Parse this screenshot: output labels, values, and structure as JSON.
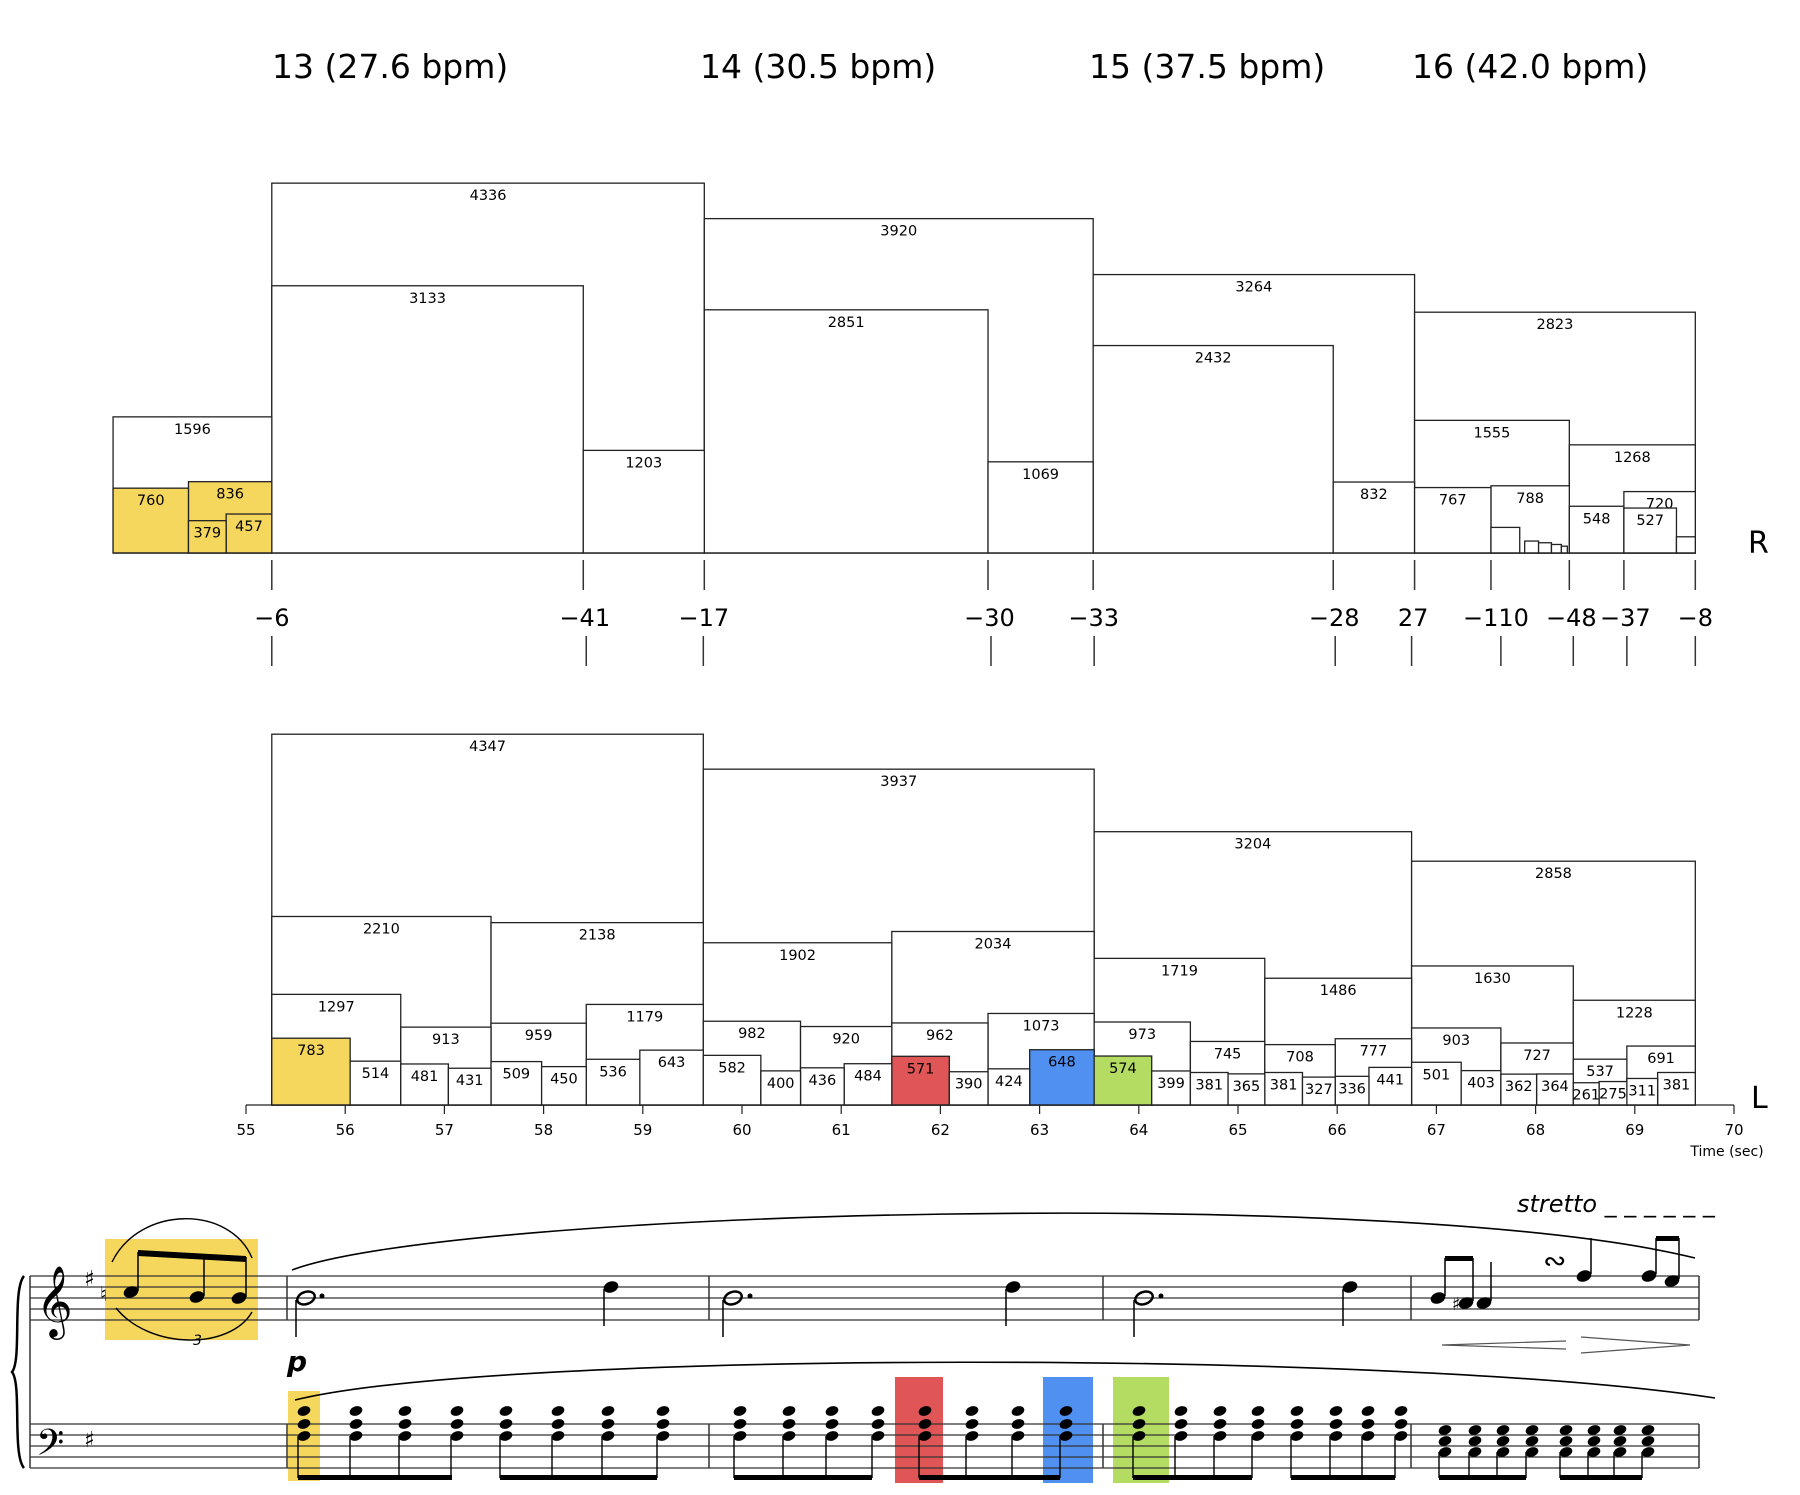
{
  "chart_data": {
    "type": "hierarchical-timing",
    "measures": [
      {
        "label": "13 (27.6 bpm)",
        "start": 55.26,
        "end": 59.62
      },
      {
        "label": "14 (30.5 bpm)",
        "start": 59.62,
        "end": 63.54
      },
      {
        "label": "15 (37.5 bpm)",
        "start": 63.54,
        "end": 66.78
      },
      {
        "label": "16 (42.0 bpm)",
        "start": 66.78,
        "end": 69.61
      }
    ],
    "xaxis": {
      "label": "Time (sec)",
      "min": 55,
      "max": 70,
      "ticks": [
        55,
        56,
        57,
        58,
        59,
        60,
        61,
        62,
        63,
        64,
        65,
        66,
        67,
        68,
        69,
        70
      ]
    },
    "hand_labels": {
      "right": "R",
      "left": "L"
    },
    "right_hand_boxes": [
      {
        "start": 53.66,
        "end": 55.26,
        "value": 1596,
        "show": true
      },
      {
        "start": 53.66,
        "end": 54.42,
        "value": 760,
        "show": true,
        "color": "yellow"
      },
      {
        "start": 54.42,
        "end": 55.26,
        "value": 836,
        "show": true,
        "color": "yellow"
      },
      {
        "start": 54.42,
        "end": 54.8,
        "value": 379,
        "show": true,
        "color": "yellow"
      },
      {
        "start": 54.8,
        "end": 55.26,
        "value": 457,
        "show": true,
        "color": "yellow"
      },
      {
        "start": 55.26,
        "end": 59.62,
        "value": 4336,
        "show": true
      },
      {
        "start": 55.26,
        "end": 58.4,
        "value": 3133,
        "show": true
      },
      {
        "start": 58.4,
        "end": 59.62,
        "value": 1203,
        "show": true
      },
      {
        "start": 59.62,
        "end": 63.54,
        "value": 3920,
        "show": true
      },
      {
        "start": 59.62,
        "end": 62.48,
        "value": 2851,
        "show": true
      },
      {
        "start": 62.48,
        "end": 63.54,
        "value": 1069,
        "show": true
      },
      {
        "start": 63.54,
        "end": 66.78,
        "value": 3264,
        "show": true
      },
      {
        "start": 63.54,
        "end": 65.96,
        "value": 2432,
        "show": true
      },
      {
        "start": 65.96,
        "end": 66.78,
        "value": 832,
        "show": true
      },
      {
        "start": 66.78,
        "end": 69.61,
        "value": 2823,
        "show": true
      },
      {
        "start": 66.78,
        "end": 68.34,
        "value": 1555,
        "show": true
      },
      {
        "start": 66.78,
        "end": 67.55,
        "value": 767,
        "show": true
      },
      {
        "start": 67.55,
        "end": 68.34,
        "value": 788,
        "show": true
      },
      {
        "start": 67.55,
        "end": 67.84,
        "value": 300,
        "show": false
      },
      {
        "start": 67.89,
        "end": 68.03,
        "value": 140,
        "show": false
      },
      {
        "start": 68.03,
        "end": 68.16,
        "value": 120,
        "show": false
      },
      {
        "start": 68.16,
        "end": 68.26,
        "value": 100,
        "show": false
      },
      {
        "start": 68.26,
        "end": 68.32,
        "value": 80,
        "show": false
      },
      {
        "start": 68.34,
        "end": 69.61,
        "value": 1268,
        "show": true
      },
      {
        "start": 68.34,
        "end": 68.89,
        "value": 548,
        "show": true
      },
      {
        "start": 68.89,
        "end": 69.61,
        "value": 720,
        "show": true
      },
      {
        "start": 68.89,
        "end": 69.42,
        "value": 527,
        "show": true
      },
      {
        "start": 69.42,
        "end": 69.61,
        "value": 190,
        "show": false
      }
    ],
    "left_hand_boxes": [
      {
        "start": 55.26,
        "end": 59.61,
        "value": 4347,
        "show": true
      },
      {
        "start": 55.26,
        "end": 57.47,
        "value": 2210,
        "show": true
      },
      {
        "start": 57.47,
        "end": 59.61,
        "value": 2138,
        "show": true
      },
      {
        "start": 55.26,
        "end": 56.56,
        "value": 1297,
        "show": true
      },
      {
        "start": 56.56,
        "end": 57.47,
        "value": 913,
        "show": true
      },
      {
        "start": 57.47,
        "end": 58.43,
        "value": 959,
        "show": true
      },
      {
        "start": 58.43,
        "end": 59.61,
        "value": 1179,
        "show": true
      },
      {
        "start": 55.26,
        "end": 56.05,
        "value": 783,
        "show": true,
        "color": "yellow"
      },
      {
        "start": 56.05,
        "end": 56.56,
        "value": 514,
        "show": true
      },
      {
        "start": 56.56,
        "end": 57.04,
        "value": 481,
        "show": true
      },
      {
        "start": 57.04,
        "end": 57.47,
        "value": 431,
        "show": true
      },
      {
        "start": 57.47,
        "end": 57.98,
        "value": 509,
        "show": true
      },
      {
        "start": 57.98,
        "end": 58.43,
        "value": 450,
        "show": true
      },
      {
        "start": 58.43,
        "end": 58.97,
        "value": 536,
        "show": true
      },
      {
        "start": 58.97,
        "end": 59.61,
        "value": 643,
        "show": true
      },
      {
        "start": 59.61,
        "end": 63.55,
        "value": 3937,
        "show": true
      },
      {
        "start": 59.61,
        "end": 61.51,
        "value": 1902,
        "show": true
      },
      {
        "start": 61.51,
        "end": 63.55,
        "value": 2034,
        "show": true
      },
      {
        "start": 59.61,
        "end": 60.59,
        "value": 982,
        "show": true
      },
      {
        "start": 60.59,
        "end": 61.51,
        "value": 920,
        "show": true
      },
      {
        "start": 61.51,
        "end": 62.48,
        "value": 962,
        "show": true
      },
      {
        "start": 62.48,
        "end": 63.55,
        "value": 1073,
        "show": true
      },
      {
        "start": 59.61,
        "end": 60.19,
        "value": 582,
        "show": true
      },
      {
        "start": 60.19,
        "end": 60.59,
        "value": 400,
        "show": true
      },
      {
        "start": 60.59,
        "end": 61.03,
        "value": 436,
        "show": true
      },
      {
        "start": 61.03,
        "end": 61.51,
        "value": 484,
        "show": true
      },
      {
        "start": 61.51,
        "end": 62.09,
        "value": 571,
        "show": true,
        "color": "red"
      },
      {
        "start": 62.09,
        "end": 62.48,
        "value": 390,
        "show": true
      },
      {
        "start": 62.48,
        "end": 62.9,
        "value": 424,
        "show": true
      },
      {
        "start": 62.9,
        "end": 63.55,
        "value": 648,
        "show": true,
        "color": "blue"
      },
      {
        "start": 63.55,
        "end": 66.75,
        "value": 3204,
        "show": true
      },
      {
        "start": 63.55,
        "end": 65.27,
        "value": 1719,
        "show": true
      },
      {
        "start": 65.27,
        "end": 66.75,
        "value": 1486,
        "show": true
      },
      {
        "start": 63.55,
        "end": 64.52,
        "value": 973,
        "show": true
      },
      {
        "start": 64.52,
        "end": 65.27,
        "value": 745,
        "show": true
      },
      {
        "start": 65.27,
        "end": 65.98,
        "value": 708,
        "show": true
      },
      {
        "start": 65.98,
        "end": 66.75,
        "value": 777,
        "show": true
      },
      {
        "start": 63.55,
        "end": 64.13,
        "value": 574,
        "show": true,
        "color": "green"
      },
      {
        "start": 64.13,
        "end": 64.52,
        "value": 399,
        "show": true
      },
      {
        "start": 64.52,
        "end": 64.9,
        "value": 381,
        "show": true
      },
      {
        "start": 64.9,
        "end": 65.27,
        "value": 365,
        "show": true
      },
      {
        "start": 65.27,
        "end": 65.65,
        "value": 381,
        "show": true
      },
      {
        "start": 65.65,
        "end": 65.98,
        "value": 327,
        "show": true
      },
      {
        "start": 65.98,
        "end": 66.32,
        "value": 336,
        "show": true
      },
      {
        "start": 66.32,
        "end": 66.75,
        "value": 441,
        "show": true
      },
      {
        "start": 66.75,
        "end": 69.61,
        "value": 2858,
        "show": true
      },
      {
        "start": 66.75,
        "end": 68.38,
        "value": 1630,
        "show": true
      },
      {
        "start": 68.38,
        "end": 69.61,
        "value": 1228,
        "show": true
      },
      {
        "start": 66.75,
        "end": 67.65,
        "value": 903,
        "show": true
      },
      {
        "start": 67.65,
        "end": 68.38,
        "value": 727,
        "show": true
      },
      {
        "start": 68.38,
        "end": 68.92,
        "value": 537,
        "show": true
      },
      {
        "start": 68.92,
        "end": 69.61,
        "value": 691,
        "show": true
      },
      {
        "start": 66.75,
        "end": 67.25,
        "value": 501,
        "show": true
      },
      {
        "start": 67.25,
        "end": 67.65,
        "value": 403,
        "show": true
      },
      {
        "start": 67.65,
        "end": 68.01,
        "value": 362,
        "show": true
      },
      {
        "start": 68.01,
        "end": 68.38,
        "value": 364,
        "show": true
      },
      {
        "start": 68.38,
        "end": 68.64,
        "value": 261,
        "show": true
      },
      {
        "start": 68.64,
        "end": 68.92,
        "value": 275,
        "show": true
      },
      {
        "start": 68.92,
        "end": 69.23,
        "value": 311,
        "show": true
      },
      {
        "start": 69.23,
        "end": 69.61,
        "value": 381,
        "show": true
      }
    ],
    "asynchrony": [
      {
        "value": "−6",
        "right": 55.26,
        "left": 55.26
      },
      {
        "value": "−41",
        "right": 58.4,
        "left": 58.43
      },
      {
        "value": "−17",
        "right": 59.62,
        "left": 59.61
      },
      {
        "value": "−30",
        "right": 62.48,
        "left": 62.51
      },
      {
        "value": "−33",
        "right": 63.54,
        "left": 63.55
      },
      {
        "value": "−28",
        "right": 65.96,
        "left": 65.98
      },
      {
        "value": "27",
        "right": 66.78,
        "left": 66.75
      },
      {
        "value": "−110",
        "right": 67.55,
        "left": 67.65
      },
      {
        "value": "−48",
        "right": 68.34,
        "left": 68.38
      },
      {
        "value": "−37",
        "right": 68.89,
        "left": 68.92
      },
      {
        "value": "−8",
        "right": 69.61,
        "left": 69.61
      }
    ]
  },
  "score": {
    "tempo_marking": "stretto _ _ _ _ _ _",
    "dynamic": "p",
    "triplet": "3",
    "highlight_colors": {
      "yellow": "#f5d75e",
      "red": "#e05656",
      "blue": "#4f90f0",
      "green": "#b5dc62"
    }
  }
}
